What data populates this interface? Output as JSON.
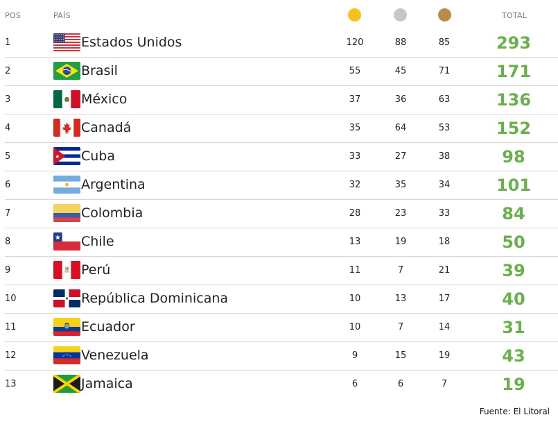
{
  "header": {
    "pos_label": "POS",
    "country_label": "PAÍS",
    "total_label": "TOTAL",
    "medal_colors": {
      "gold": "#f5c21b",
      "silver": "#c5c8cb",
      "bronze": "#b88b4a"
    }
  },
  "rows": [
    {
      "pos": "1",
      "country": "Estados Unidos",
      "flag": "usa-flag",
      "gold": "120",
      "silver": "88",
      "bronze": "85",
      "total": "293"
    },
    {
      "pos": "2",
      "country": "Brasil",
      "flag": "brazil-flag",
      "gold": "55",
      "silver": "45",
      "bronze": "71",
      "total": "171"
    },
    {
      "pos": "3",
      "country": "México",
      "flag": "mexico-flag",
      "gold": "37",
      "silver": "36",
      "bronze": "63",
      "total": "136"
    },
    {
      "pos": "4",
      "country": "Canadá",
      "flag": "canada-flag",
      "gold": "35",
      "silver": "64",
      "bronze": "53",
      "total": "152"
    },
    {
      "pos": "5",
      "country": "Cuba",
      "flag": "cuba-flag",
      "gold": "33",
      "silver": "27",
      "bronze": "38",
      "total": "98"
    },
    {
      "pos": "6",
      "country": "Argentina",
      "flag": "argentina-flag",
      "gold": "32",
      "silver": "35",
      "bronze": "34",
      "total": "101"
    },
    {
      "pos": "7",
      "country": "Colombia",
      "flag": "colombia-flag",
      "gold": "28",
      "silver": "23",
      "bronze": "33",
      "total": "84"
    },
    {
      "pos": "8",
      "country": "Chile",
      "flag": "chile-flag",
      "gold": "13",
      "silver": "19",
      "bronze": "18",
      "total": "50"
    },
    {
      "pos": "9",
      "country": "Perú",
      "flag": "peru-flag",
      "gold": "11",
      "silver": "7",
      "bronze": "21",
      "total": "39"
    },
    {
      "pos": "10",
      "country": "República Dominicana",
      "flag": "dominican-republic-flag",
      "gold": "10",
      "silver": "13",
      "bronze": "17",
      "total": "40"
    },
    {
      "pos": "11",
      "country": "Ecuador",
      "flag": "ecuador-flag",
      "gold": "10",
      "silver": "7",
      "bronze": "14",
      "total": "31"
    },
    {
      "pos": "12",
      "country": "Venezuela",
      "flag": "venezuela-flag",
      "gold": "9",
      "silver": "15",
      "bronze": "19",
      "total": "43"
    },
    {
      "pos": "13",
      "country": "Jamaica",
      "flag": "jamaica-flag",
      "gold": "6",
      "silver": "6",
      "bronze": "7",
      "total": "19"
    }
  ],
  "source": "Fuente: El Litoral",
  "total_color": "#6ab04c"
}
